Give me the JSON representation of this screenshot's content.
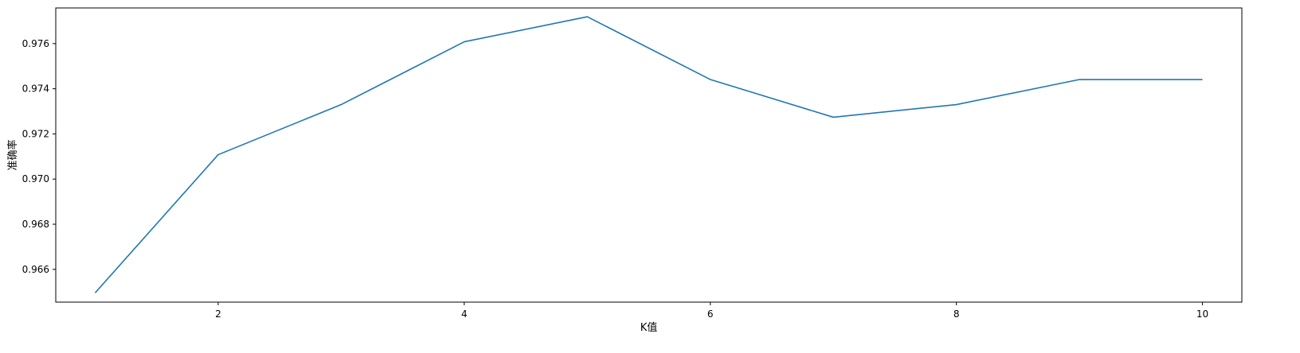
{
  "chart_data": {
    "type": "line",
    "title": "",
    "xlabel": "K值",
    "ylabel": "准确率",
    "xlim": [
      0.68,
      10.32
    ],
    "ylim": [
      0.96455,
      0.97758
    ],
    "x_ticks": [
      2,
      4,
      6,
      8,
      10
    ],
    "y_ticks": [
      0.966,
      0.968,
      0.97,
      0.972,
      0.974,
      0.976
    ],
    "x_tick_labels": [
      "2",
      "4",
      "6",
      "8",
      "10"
    ],
    "y_tick_labels": [
      "0.966",
      "0.968",
      "0.970",
      "0.972",
      "0.974",
      "0.976"
    ],
    "grid": false,
    "line_color": "#1f77b4",
    "series": [
      {
        "x": [
          1,
          2,
          3,
          4,
          5,
          6,
          7,
          8,
          9,
          10
        ],
        "values": [
          0.96496,
          0.97108,
          0.9733,
          0.97608,
          0.97719,
          0.97441,
          0.97274,
          0.9733,
          0.97441,
          0.97441
        ]
      }
    ]
  }
}
